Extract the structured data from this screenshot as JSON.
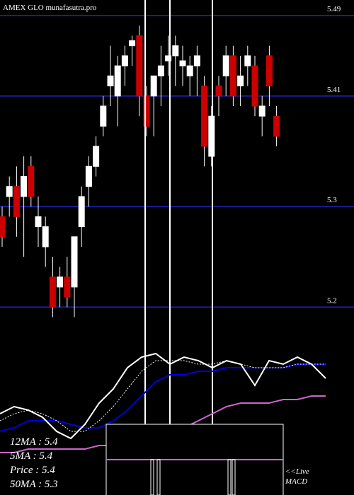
{
  "chart_data": [
    {
      "type": "candlestick",
      "title": "AMEX GLO munafasutra.pro",
      "ylim": [
        5.196,
        5.5055
      ],
      "yticks": [
        5.49,
        5.41,
        5.3,
        5.2
      ],
      "grid": true,
      "grid_color": "#1c1c9a",
      "up_color": "#ffffff",
      "down_color": "#cc0000",
      "candles": [
        {
          "open": 5.29,
          "high": 5.3,
          "low": 5.26,
          "close": 5.27
        },
        {
          "open": 5.31,
          "high": 5.33,
          "low": 5.29,
          "close": 5.32
        },
        {
          "open": 5.32,
          "high": 5.34,
          "low": 5.27,
          "close": 5.29
        },
        {
          "open": 5.31,
          "high": 5.35,
          "low": 5.25,
          "close": 5.33
        },
        {
          "open": 5.34,
          "high": 5.35,
          "low": 5.3,
          "close": 5.31
        },
        {
          "open": 5.28,
          "high": 5.31,
          "low": 5.26,
          "close": 5.29
        },
        {
          "open": 5.26,
          "high": 5.29,
          "low": 5.24,
          "close": 5.28
        },
        {
          "open": 5.23,
          "high": 5.25,
          "low": 5.19,
          "close": 5.2
        },
        {
          "open": 5.22,
          "high": 5.24,
          "low": 5.2,
          "close": 5.23
        },
        {
          "open": 5.23,
          "high": 5.25,
          "low": 5.2,
          "close": 5.21
        },
        {
          "open": 5.22,
          "high": 5.27,
          "low": 5.19,
          "close": 5.27
        },
        {
          "open": 5.28,
          "high": 5.32,
          "low": 5.26,
          "close": 5.31
        },
        {
          "open": 5.32,
          "high": 5.35,
          "low": 5.3,
          "close": 5.34
        },
        {
          "open": 5.34,
          "high": 5.37,
          "low": 5.33,
          "close": 5.36
        },
        {
          "open": 5.38,
          "high": 5.41,
          "low": 5.37,
          "close": 5.4
        },
        {
          "open": 5.42,
          "high": 5.46,
          "low": 5.4,
          "close": 5.43
        },
        {
          "open": 5.41,
          "high": 5.45,
          "low": 5.38,
          "close": 5.44
        },
        {
          "open": 5.44,
          "high": 5.46,
          "low": 5.42,
          "close": 5.45
        },
        {
          "open": 5.46,
          "high": 5.47,
          "low": 5.44,
          "close": 5.465
        },
        {
          "open": 5.47,
          "high": 5.48,
          "low": 5.39,
          "close": 5.41
        },
        {
          "open": 5.41,
          "high": 5.42,
          "low": 5.37,
          "close": 5.38
        },
        {
          "open": 5.41,
          "high": 5.43,
          "low": 5.37,
          "close": 5.43
        },
        {
          "open": 5.43,
          "high": 5.46,
          "low": 5.4,
          "close": 5.44
        },
        {
          "open": 5.445,
          "high": 5.47,
          "low": 5.43,
          "close": 5.45
        },
        {
          "open": 5.45,
          "high": 5.47,
          "low": 5.42,
          "close": 5.46
        },
        {
          "open": 5.44,
          "high": 5.46,
          "low": 5.42,
          "close": 5.445
        },
        {
          "open": 5.43,
          "high": 5.45,
          "low": 5.41,
          "close": 5.44
        },
        {
          "open": 5.44,
          "high": 5.46,
          "low": 5.41,
          "close": 5.45
        },
        {
          "open": 5.42,
          "high": 5.43,
          "low": 5.34,
          "close": 5.36
        },
        {
          "open": 5.35,
          "high": 5.4,
          "low": 5.34,
          "close": 5.39
        },
        {
          "open": 5.42,
          "high": 5.43,
          "low": 5.39,
          "close": 5.41
        },
        {
          "open": 5.43,
          "high": 5.46,
          "low": 5.41,
          "close": 5.45
        },
        {
          "open": 5.45,
          "high": 5.46,
          "low": 5.4,
          "close": 5.41
        },
        {
          "open": 5.42,
          "high": 5.45,
          "low": 5.4,
          "close": 5.43
        },
        {
          "open": 5.44,
          "high": 5.46,
          "low": 5.42,
          "close": 5.45
        },
        {
          "open": 5.44,
          "high": 5.45,
          "low": 5.39,
          "close": 5.4
        },
        {
          "open": 5.39,
          "high": 5.41,
          "low": 5.37,
          "close": 5.4
        },
        {
          "open": 5.45,
          "high": 5.46,
          "low": 5.4,
          "close": 5.42
        },
        {
          "open": 5.39,
          "high": 5.4,
          "low": 5.36,
          "close": 5.37
        }
      ]
    },
    {
      "type": "line",
      "annotations": [
        "12MA : 5.4",
        "5MA : 5.4",
        "Price : 5.4",
        "50MA : 5.3",
        "<<Live",
        "MACD"
      ],
      "x": [
        0,
        1,
        2,
        3,
        4,
        5,
        6,
        7,
        8,
        9,
        10,
        11,
        12,
        13,
        14,
        15,
        16,
        17,
        18,
        19,
        20,
        21,
        22,
        23
      ],
      "xlim": [
        0,
        25
      ],
      "ylim": [
        5.1,
        5.5
      ],
      "series": [
        {
          "color": "#cc66cc",
          "dash": false,
          "values": [
            5.18,
            5.18,
            5.19,
            5.19,
            5.19,
            5.19,
            5.19,
            5.2,
            5.2,
            5.2,
            5.2,
            5.21,
            5.23,
            5.25,
            5.27,
            5.29,
            5.31,
            5.32,
            5.32,
            5.32,
            5.33,
            5.33,
            5.34,
            5.34
          ]
        },
        {
          "color": "#0000dd",
          "dash": false,
          "values": [
            5.24,
            5.25,
            5.27,
            5.27,
            5.27,
            5.26,
            5.25,
            5.25,
            5.27,
            5.3,
            5.34,
            5.38,
            5.4,
            5.4,
            5.41,
            5.41,
            5.42,
            5.42,
            5.42,
            5.42,
            5.42,
            5.43,
            5.43,
            5.43
          ]
        },
        {
          "color": "#ffffff",
          "dash": true,
          "values": [
            5.27,
            5.29,
            5.3,
            5.29,
            5.27,
            5.24,
            5.24,
            5.27,
            5.31,
            5.36,
            5.41,
            5.44,
            5.44,
            5.44,
            5.43,
            5.43,
            5.44,
            5.43,
            5.42,
            5.42,
            5.42,
            5.43,
            5.43,
            5.43
          ]
        },
        {
          "color": "#ffffff",
          "dash": false,
          "values": [
            5.29,
            5.31,
            5.3,
            5.28,
            5.24,
            5.22,
            5.26,
            5.32,
            5.36,
            5.42,
            5.45,
            5.46,
            5.43,
            5.45,
            5.44,
            5.42,
            5.44,
            5.43,
            5.37,
            5.44,
            5.43,
            5.45,
            5.43,
            5.39
          ]
        }
      ]
    }
  ]
}
